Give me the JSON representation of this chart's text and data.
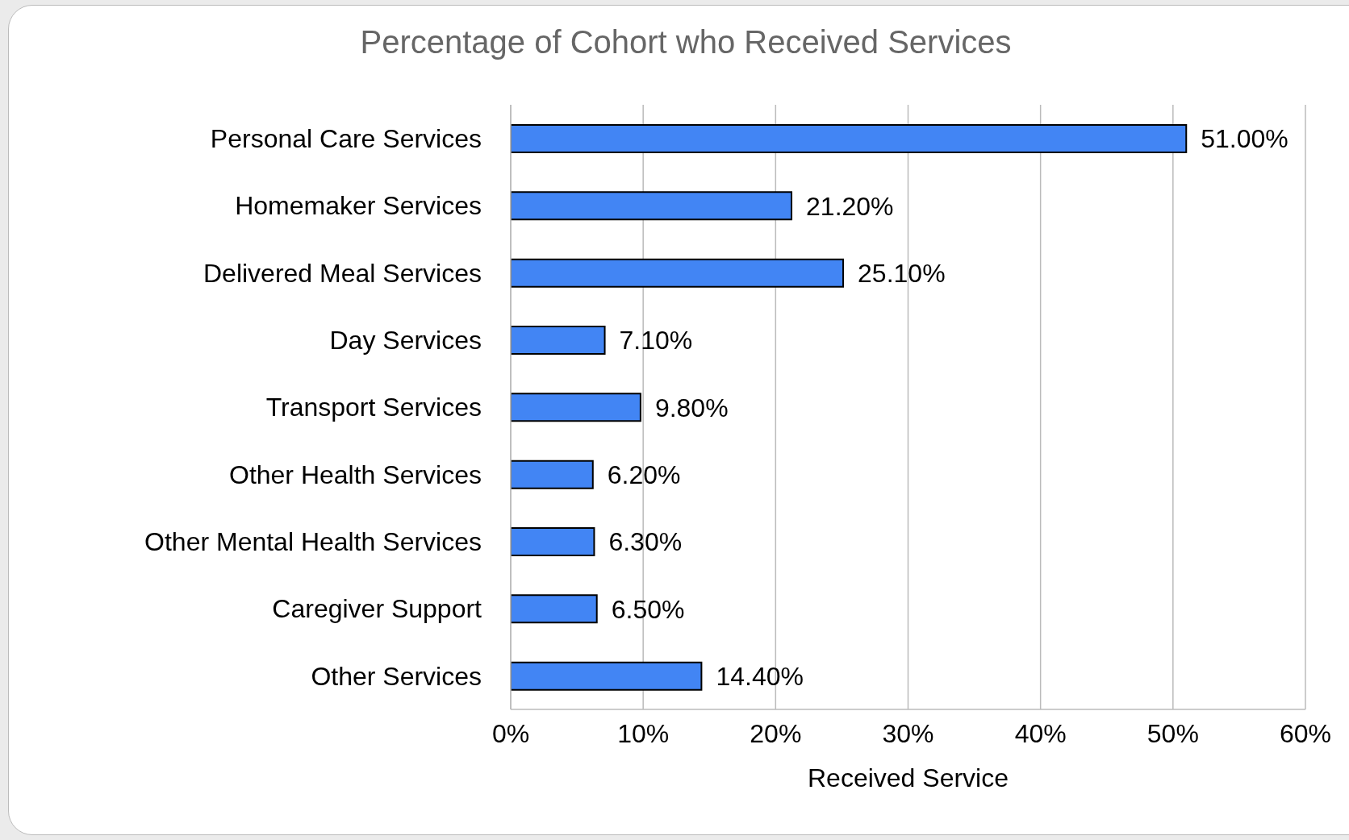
{
  "chart_data": {
    "type": "bar",
    "orientation": "horizontal",
    "title": "Percentage of Cohort who Received Services",
    "xlabel": "Received Service",
    "categories": [
      "Personal Care Services",
      "Homemaker Services",
      "Delivered Meal Services",
      "Day Services",
      "Transport Services",
      "Other Health Services",
      "Other Mental Health Services",
      "Caregiver Support",
      "Other Services"
    ],
    "values": [
      51.0,
      21.2,
      25.1,
      7.1,
      9.8,
      6.2,
      6.3,
      6.5,
      14.4
    ],
    "value_labels": [
      "51.00%",
      "21.20%",
      "25.10%",
      "7.10%",
      "9.80%",
      "6.20%",
      "6.30%",
      "6.50%",
      "14.40%"
    ],
    "color": "#4285f4",
    "xlim": [
      0,
      60
    ],
    "xticks": [
      {
        "value": 0,
        "label": "0%"
      },
      {
        "value": 10,
        "label": "10%"
      },
      {
        "value": 20,
        "label": "20%"
      },
      {
        "value": 30,
        "label": "30%"
      },
      {
        "value": 40,
        "label": "40%"
      },
      {
        "value": 50,
        "label": "50%"
      },
      {
        "value": 60,
        "label": "60%"
      }
    ],
    "grid": "x",
    "legend": false
  }
}
